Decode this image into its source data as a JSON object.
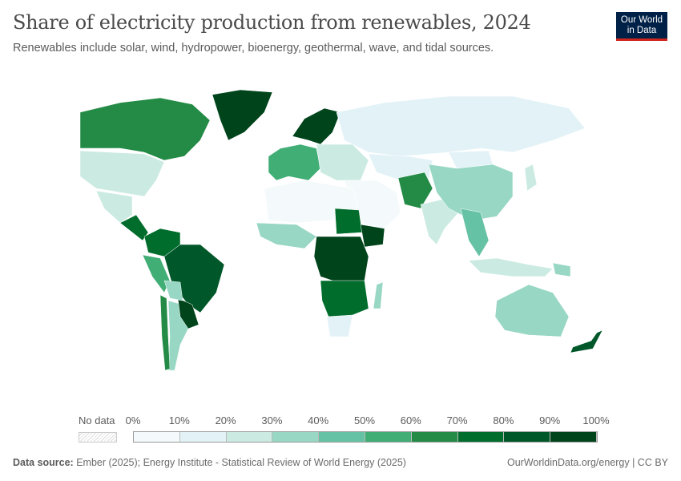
{
  "header": {
    "title": "Share of electricity production from renewables, 2024",
    "subtitle": "Renewables include solar, wind, hydropower, bioenergy, geothermal, wave, and tidal sources.",
    "logo_text": "Our World in Data"
  },
  "legend": {
    "no_data_label": "No data",
    "ticks": [
      "0%",
      "10%",
      "20%",
      "30%",
      "40%",
      "50%",
      "60%",
      "70%",
      "80%",
      "90%",
      "100%"
    ],
    "colors": [
      "#f4fafb",
      "#e2f2f7",
      "#cbebe2",
      "#98d7c4",
      "#66c2a4",
      "#41ae76",
      "#238b45",
      "#006d2c",
      "#00582a",
      "#00441b"
    ]
  },
  "map_regions": [
    {
      "name": "Canada",
      "share_pct": 65
    },
    {
      "name": "United States",
      "share_pct": 24
    },
    {
      "name": "Greenland",
      "share_pct": 95
    },
    {
      "name": "Mexico",
      "share_pct": 22
    },
    {
      "name": "Central America",
      "share_pct": 75
    },
    {
      "name": "Colombia/Venezuela",
      "share_pct": 75
    },
    {
      "name": "Brazil",
      "share_pct": 88
    },
    {
      "name": "Peru/Ecuador",
      "share_pct": 55
    },
    {
      "name": "Argentina",
      "share_pct": 35
    },
    {
      "name": "Chile",
      "share_pct": 62
    },
    {
      "name": "Paraguay/Uruguay",
      "share_pct": 95
    },
    {
      "name": "Bolivia",
      "share_pct": 30
    },
    {
      "name": "Scandinavia",
      "share_pct": 90
    },
    {
      "name": "Western Europe",
      "share_pct": 52
    },
    {
      "name": "Eastern Europe",
      "share_pct": 25
    },
    {
      "name": "Russia",
      "share_pct": 18
    },
    {
      "name": "Kazakhstan/Central Asia",
      "share_pct": 12
    },
    {
      "name": "Middle East",
      "share_pct": 5
    },
    {
      "name": "Afghanistan/Pakistan",
      "share_pct": 60
    },
    {
      "name": "India",
      "share_pct": 22
    },
    {
      "name": "China",
      "share_pct": 33
    },
    {
      "name": "Mongolia",
      "share_pct": 10
    },
    {
      "name": "Southeast Asia",
      "share_pct": 40
    },
    {
      "name": "Indonesia",
      "share_pct": 20
    },
    {
      "name": "Japan",
      "share_pct": 25
    },
    {
      "name": "North Africa",
      "share_pct": 5
    },
    {
      "name": "West Africa",
      "share_pct": 35
    },
    {
      "name": "Sudan",
      "share_pct": 75
    },
    {
      "name": "Central Africa",
      "share_pct": 90
    },
    {
      "name": "Ethiopia",
      "share_pct": 96
    },
    {
      "name": "Southern Africa",
      "share_pct": 70
    },
    {
      "name": "South Africa",
      "share_pct": 14
    },
    {
      "name": "Madagascar",
      "share_pct": 38
    },
    {
      "name": "Australia",
      "share_pct": 36
    },
    {
      "name": "New Zealand",
      "share_pct": 85
    },
    {
      "name": "Papua New Guinea",
      "share_pct": 30
    }
  ],
  "footer": {
    "source_label": "Data source:",
    "source_text": "Ember (2025); Energy Institute - Statistical Review of World Energy (2025)",
    "right_text": "OurWorldinData.org/energy | CC BY"
  }
}
